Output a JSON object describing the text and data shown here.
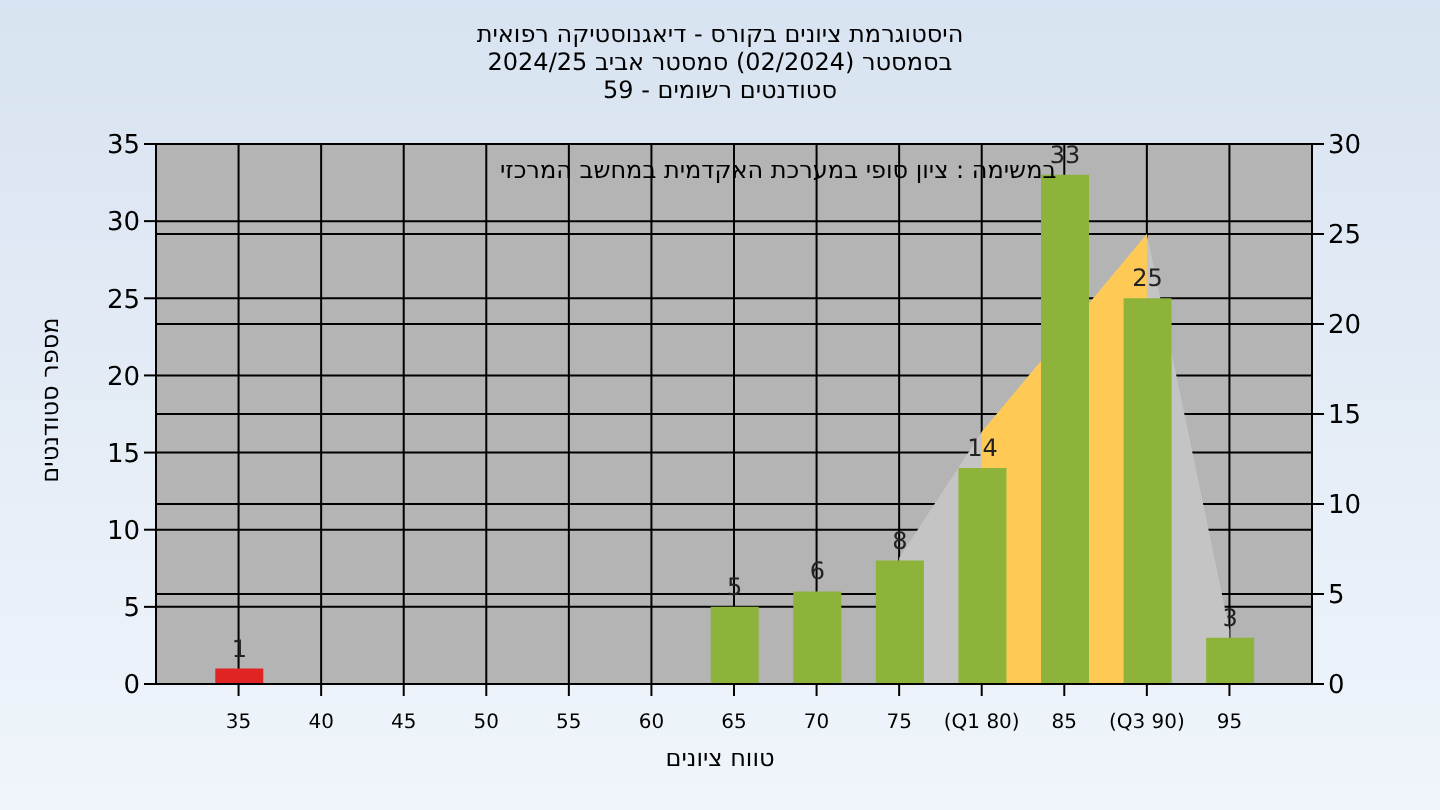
{
  "chart_data": {
    "type": "bar",
    "title": "היסטוגרמת ציונים בקורס - דיאגנוסטיקה רפואית",
    "subtitle": "בסמסטר  (02/2024)  סמסטר אביב 2024/25\nסטודנטים רשומים - 59",
    "xlabel": "טווח ציונים",
    "ylabel": "מספר סטודנטים",
    "annotations": [
      "במשימה : ציון סופי במערכת האקדמית במחשב המרכזי"
    ],
    "x": [
      35,
      65,
      70,
      75,
      80,
      85,
      90,
      95
    ],
    "series": [
      {
        "values": [
          1,
          5,
          6,
          8,
          14,
          33,
          25,
          3
        ],
        "value_labels": [
          "1",
          "5",
          "6",
          "8",
          "14",
          "33",
          "25",
          "3"
        ],
        "colors": [
          "#e02424",
          "#8db33a",
          "#8db33a",
          "#8db33a",
          "#8db33a",
          "#8db33a",
          "#8db33a",
          "#8db33a"
        ]
      },
      {
        "type": "area",
        "axis": "y2",
        "color": "#c4c4c4",
        "x": [
          75,
          80,
          90,
          95
        ],
        "values": [
          7,
          14,
          25,
          3
        ]
      },
      {
        "type": "area",
        "axis": "y2",
        "color": "#ffc955",
        "x": [
          80,
          90
        ],
        "values": [
          14,
          25
        ]
      }
    ],
    "grid": true,
    "xlim": [
      30,
      100
    ],
    "xticks": [
      35,
      40,
      45,
      50,
      55,
      60,
      65,
      70,
      75,
      {
        "value": 80,
        "label": "(Q1 80)"
      },
      85,
      {
        "value": 90,
        "label": "(Q3 90)"
      },
      95
    ],
    "ylim": [
      0,
      35
    ],
    "yticks": [
      0,
      5,
      10,
      15,
      20,
      25,
      30,
      35
    ],
    "y2lim": [
      0,
      30
    ],
    "y2ticks": [
      0,
      5,
      10,
      15,
      20,
      25,
      30
    ]
  }
}
